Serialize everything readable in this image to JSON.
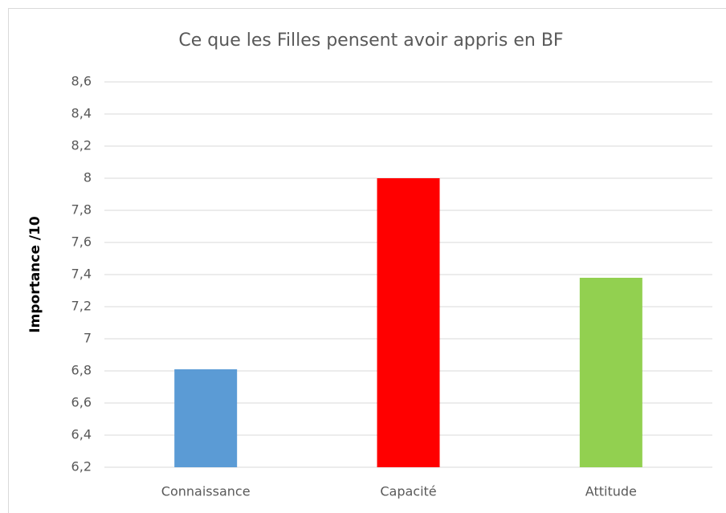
{
  "chart_data": {
    "type": "bar",
    "title": "Ce que les Filles pensent avoir appris en BF",
    "y_label": "Importance /10",
    "categories": [
      "Connaissance",
      "Capacité",
      "Attitude"
    ],
    "values": [
      6.81,
      8.0,
      7.38
    ],
    "colors": [
      "#5b9bd5",
      "#ff0000",
      "#92d050"
    ],
    "ylim": [
      6.2,
      8.6
    ],
    "yticks": [
      {
        "value": 6.2,
        "label": "6,2"
      },
      {
        "value": 6.4,
        "label": "6,4"
      },
      {
        "value": 6.6,
        "label": "6,6"
      },
      {
        "value": 6.8,
        "label": "6,8"
      },
      7,
      {
        "value": 7.2,
        "label": "7,2"
      },
      {
        "value": 7.4,
        "label": "7,4"
      },
      {
        "value": 7.6,
        "label": "7,6"
      },
      {
        "value": 7.8,
        "label": "7,8"
      },
      8,
      {
        "value": 8.2,
        "label": "8,2"
      },
      {
        "value": 8.4,
        "label": "8,4"
      },
      {
        "value": 8.6,
        "label": "8,6"
      }
    ],
    "grid": true
  }
}
